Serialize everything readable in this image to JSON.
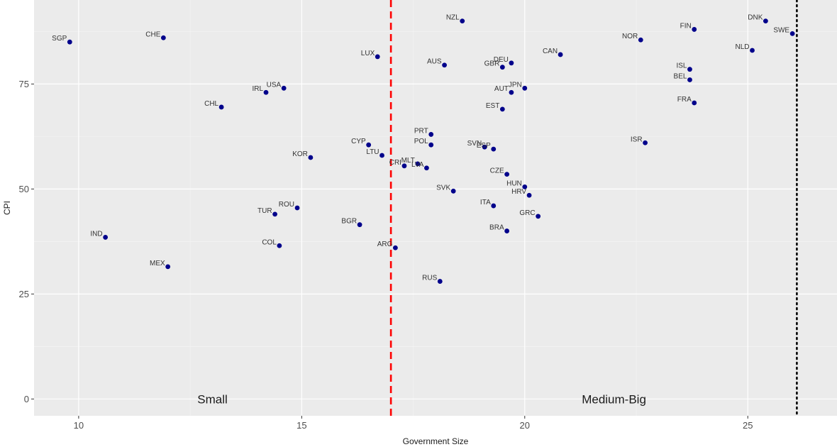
{
  "chart_data": {
    "type": "scatter",
    "xlabel": "Government Size",
    "ylabel": "CPI",
    "xlim": [
      9.0,
      27.0
    ],
    "ylim": [
      -4.0,
      95.0
    ],
    "xticks": [
      10,
      15,
      20,
      25
    ],
    "yticks": [
      0,
      25,
      50,
      75
    ],
    "grid": true,
    "panel_color": "#ebebeb",
    "point_color": "#00008b",
    "vlines": [
      {
        "x": 17.0,
        "style": "dashed",
        "color": "#ff0000"
      },
      {
        "x": 26.1,
        "style": "dotted",
        "color": "#000000"
      }
    ],
    "annotations": [
      {
        "text": "Small",
        "x": 13.0,
        "y": 0
      },
      {
        "text": "Medium-Big",
        "x": 22.0,
        "y": 0
      }
    ],
    "points": [
      {
        "label": "SGP",
        "x": 9.8,
        "y": 85
      },
      {
        "label": "CHE",
        "x": 11.9,
        "y": 86
      },
      {
        "label": "IND",
        "x": 10.6,
        "y": 38.5
      },
      {
        "label": "MEX",
        "x": 12.0,
        "y": 31.5
      },
      {
        "label": "CHL",
        "x": 13.2,
        "y": 69.5
      },
      {
        "label": "IRL",
        "x": 14.2,
        "y": 73
      },
      {
        "label": "USA",
        "x": 14.6,
        "y": 74
      },
      {
        "label": "KOR",
        "x": 15.2,
        "y": 57.5
      },
      {
        "label": "TUR",
        "x": 14.4,
        "y": 44
      },
      {
        "label": "ROU",
        "x": 14.9,
        "y": 45.5
      },
      {
        "label": "COL",
        "x": 14.5,
        "y": 36.5
      },
      {
        "label": "BGR",
        "x": 16.3,
        "y": 41.5
      },
      {
        "label": "LUX",
        "x": 16.7,
        "y": 81.5
      },
      {
        "label": "CYP",
        "x": 16.5,
        "y": 60.5
      },
      {
        "label": "LTU",
        "x": 16.8,
        "y": 58
      },
      {
        "label": "ARG",
        "x": 17.1,
        "y": 36
      },
      {
        "label": "CRI",
        "x": 17.3,
        "y": 55.5
      },
      {
        "label": "MLT",
        "x": 17.6,
        "y": 56
      },
      {
        "label": "LVA",
        "x": 17.8,
        "y": 55
      },
      {
        "label": "PRT",
        "x": 17.9,
        "y": 63
      },
      {
        "label": "POL",
        "x": 17.9,
        "y": 60.5
      },
      {
        "label": "AUS",
        "x": 18.2,
        "y": 79.5
      },
      {
        "label": "NZL",
        "x": 18.6,
        "y": 90
      },
      {
        "label": "RUS",
        "x": 18.1,
        "y": 28
      },
      {
        "label": "SVK",
        "x": 18.4,
        "y": 49.5
      },
      {
        "label": "SVN",
        "x": 19.1,
        "y": 60
      },
      {
        "label": "ESP",
        "x": 19.3,
        "y": 59.5
      },
      {
        "label": "ITA",
        "x": 19.3,
        "y": 46
      },
      {
        "label": "GBR",
        "x": 19.5,
        "y": 79
      },
      {
        "label": "DEU",
        "x": 19.7,
        "y": 80
      },
      {
        "label": "EST",
        "x": 19.5,
        "y": 69
      },
      {
        "label": "AUT",
        "x": 19.7,
        "y": 73
      },
      {
        "label": "JPN",
        "x": 20.0,
        "y": 74
      },
      {
        "label": "CZE",
        "x": 19.6,
        "y": 53.5
      },
      {
        "label": "BRA",
        "x": 19.6,
        "y": 40
      },
      {
        "label": "HUN",
        "x": 20.0,
        "y": 50.5
      },
      {
        "label": "HRV",
        "x": 20.1,
        "y": 48.5
      },
      {
        "label": "GRC",
        "x": 20.3,
        "y": 43.5
      },
      {
        "label": "CAN",
        "x": 20.8,
        "y": 82
      },
      {
        "label": "NOR",
        "x": 22.6,
        "y": 85.5
      },
      {
        "label": "ISR",
        "x": 22.7,
        "y": 61
      },
      {
        "label": "FIN",
        "x": 23.8,
        "y": 88
      },
      {
        "label": "ISL",
        "x": 23.7,
        "y": 78.5
      },
      {
        "label": "BEL",
        "x": 23.7,
        "y": 76
      },
      {
        "label": "FRA",
        "x": 23.8,
        "y": 70.5
      },
      {
        "label": "NLD",
        "x": 25.1,
        "y": 83
      },
      {
        "label": "DNK",
        "x": 25.4,
        "y": 90
      },
      {
        "label": "SWE",
        "x": 26.0,
        "y": 87
      }
    ]
  }
}
